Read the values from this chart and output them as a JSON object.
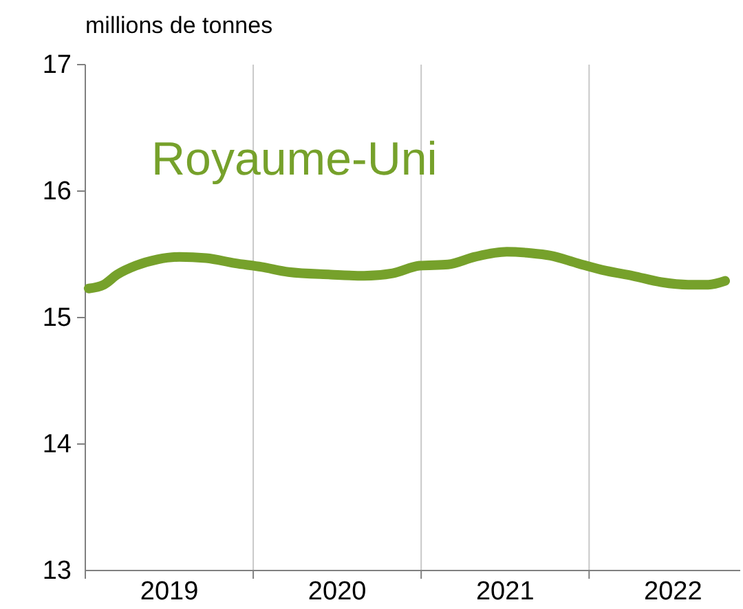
{
  "chart_data": {
    "type": "line",
    "title": "Royaume-Uni",
    "ylabel": "millions de tonnes",
    "x": [
      2019.02,
      2019.11,
      2019.19,
      2019.3,
      2019.43,
      2019.56,
      2019.72,
      2019.89,
      2020.05,
      2020.21,
      2020.46,
      2020.66,
      2020.83,
      2020.99,
      2021.16,
      2021.32,
      2021.51,
      2021.65,
      2021.77,
      2021.93,
      2022.1,
      2022.26,
      2022.43,
      2022.59,
      2022.71,
      2022.81
    ],
    "series": [
      {
        "color": "#76a12b",
        "values": [
          15.23,
          15.26,
          15.34,
          15.41,
          15.46,
          15.48,
          15.47,
          15.43,
          15.4,
          15.36,
          15.34,
          15.33,
          15.35,
          15.41,
          15.42,
          15.48,
          15.52,
          15.51,
          15.49,
          15.43,
          15.37,
          15.33,
          15.28,
          15.26,
          15.26,
          15.29
        ]
      }
    ],
    "xlim": [
      2019,
      2022.9
    ],
    "xticks": [
      {
        "value": 2019,
        "label": null
      },
      {
        "value": 2019.5,
        "label": "2019"
      },
      {
        "value": 2020,
        "label": null
      },
      {
        "value": 2020.5,
        "label": "2020"
      },
      {
        "value": 2021,
        "label": null
      },
      {
        "value": 2021.5,
        "label": "2021"
      },
      {
        "value": 2022,
        "label": null
      },
      {
        "value": 2022.5,
        "label": "2022"
      }
    ],
    "ylim": [
      13,
      17
    ],
    "yticks": [
      13,
      14,
      15,
      16,
      17
    ],
    "grid": "x",
    "marker": "none",
    "line_style": "solid"
  }
}
